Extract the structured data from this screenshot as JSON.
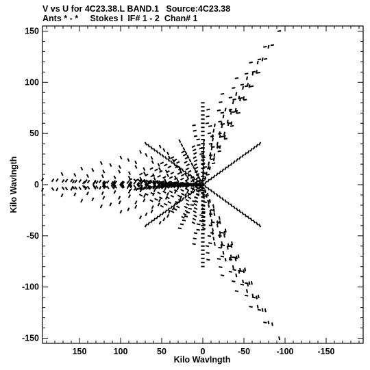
{
  "header": {
    "line1": "V vs U for 4C23.38.L BAND.1   Source:4C23.38",
    "line2": "Ants * - *     Stokes I  IF# 1 - 2  Chan# 1"
  },
  "chart_data": {
    "type": "scatter",
    "title": "V vs U for 4C23.38.L BAND.1   Source:4C23.38",
    "subtitle": "Ants * - *     Stokes I  IF# 1 - 2  Chan# 1",
    "xlabel": "Kilo Wavlngth",
    "ylabel": "Kilo Wavlngth",
    "xlim": [
      195,
      -195
    ],
    "ylim": [
      -155,
      155
    ],
    "x_ticks": [
      150,
      100,
      50,
      0,
      -50,
      -100,
      -150
    ],
    "x_tick_labels": [
      "150",
      "100",
      "50",
      "0",
      "-50",
      "-100",
      "-150"
    ],
    "y_ticks": [
      150,
      100,
      50,
      0,
      -50,
      -100,
      -150
    ],
    "y_tick_labels": [
      "150",
      "100",
      "50",
      "0",
      "-50",
      "-100",
      "-150"
    ],
    "grid": false,
    "marker_color": "#000000",
    "pattern": {
      "description": "six-armed star sampling pattern (point-symmetric UV coverage)",
      "arm_angles_deg": [
        90,
        30,
        -30,
        -90,
        -150,
        150
      ],
      "arm_tip_u": [
        -93,
        195,
        195,
        -93,
        88,
        88
      ],
      "arm_tip_v": [
        150,
        5,
        -5,
        -150,
        -5,
        5
      ],
      "rings_per_arm": 12,
      "dots_per_ring": 24,
      "max_radius": 150,
      "inner_radius": 3
    }
  }
}
